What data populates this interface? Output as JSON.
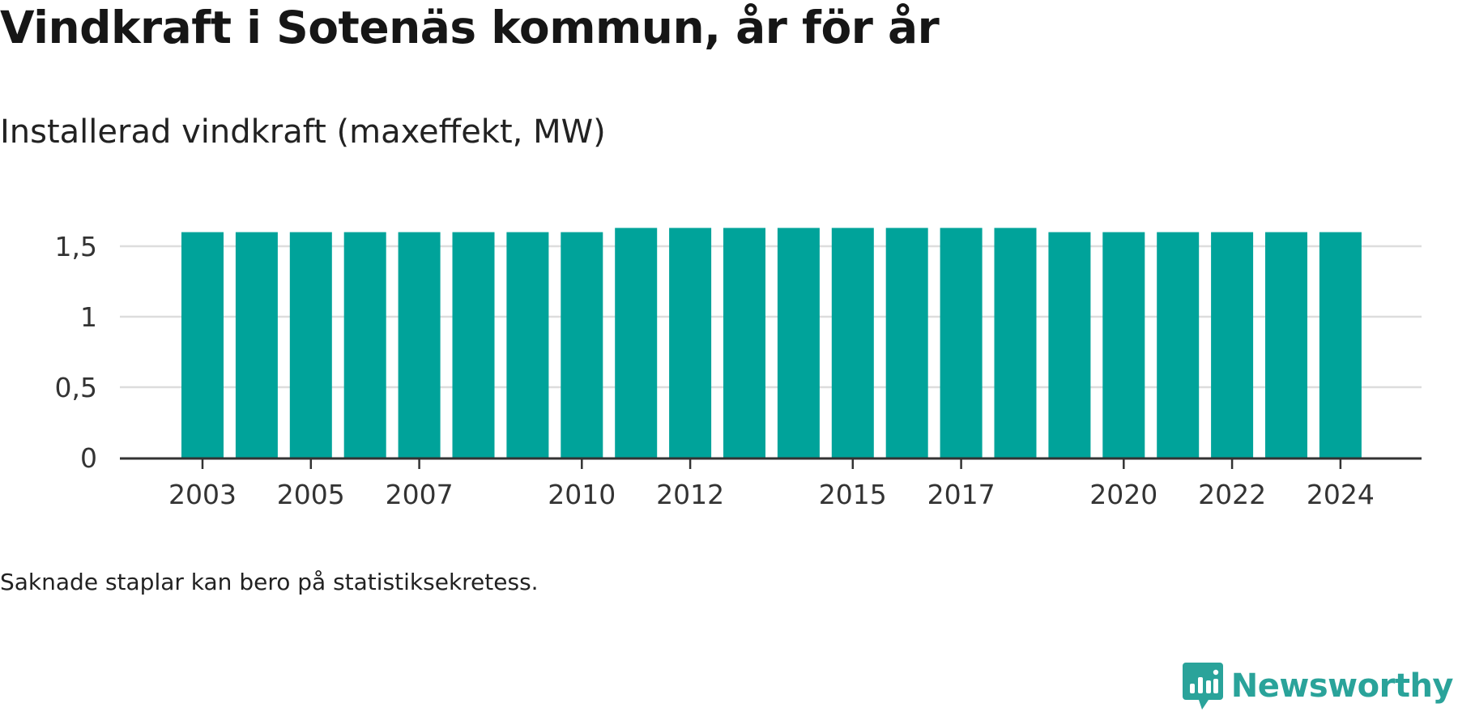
{
  "header": {
    "title": "Vindkraft i Sotenäs kommun, år för år",
    "subtitle": "Installerad vindkraft (maxeffekt, MW)"
  },
  "footer": {
    "note": "Saknade staplar kan bero på statistiksekretess.",
    "brand": "Newsworthy"
  },
  "colors": {
    "bar": "#00a39a",
    "grid": "#dddddd",
    "axis": "#333333",
    "brand": "#2aa39a"
  },
  "icons": {
    "brand_logo": "speech-bubble-bar-chart-icon"
  },
  "chart_data": {
    "type": "bar",
    "title": "Installerad vindkraft (maxeffekt, MW)",
    "categories": [
      "2003",
      "2004",
      "2005",
      "2006",
      "2007",
      "2008",
      "2009",
      "2010",
      "2011",
      "2012",
      "2013",
      "2014",
      "2015",
      "2016",
      "2017",
      "2018",
      "2019",
      "2020",
      "2021",
      "2022",
      "2023",
      "2024"
    ],
    "values": [
      1.6,
      1.6,
      1.6,
      1.6,
      1.6,
      1.6,
      1.6,
      1.6,
      1.63,
      1.63,
      1.63,
      1.63,
      1.63,
      1.63,
      1.63,
      1.63,
      1.6,
      1.6,
      1.6,
      1.6,
      1.6,
      1.6
    ],
    "x_tick_labels": [
      "2003",
      "2005",
      "2007",
      "2010",
      "2012",
      "2015",
      "2017",
      "2020",
      "2022",
      "2024"
    ],
    "y_ticks": [
      0,
      0.5,
      1,
      1.5
    ],
    "y_tick_labels": [
      "0",
      "0,5",
      "1",
      "1,5"
    ],
    "ylim": [
      0,
      1.75
    ],
    "grid": true,
    "legend": "none"
  }
}
